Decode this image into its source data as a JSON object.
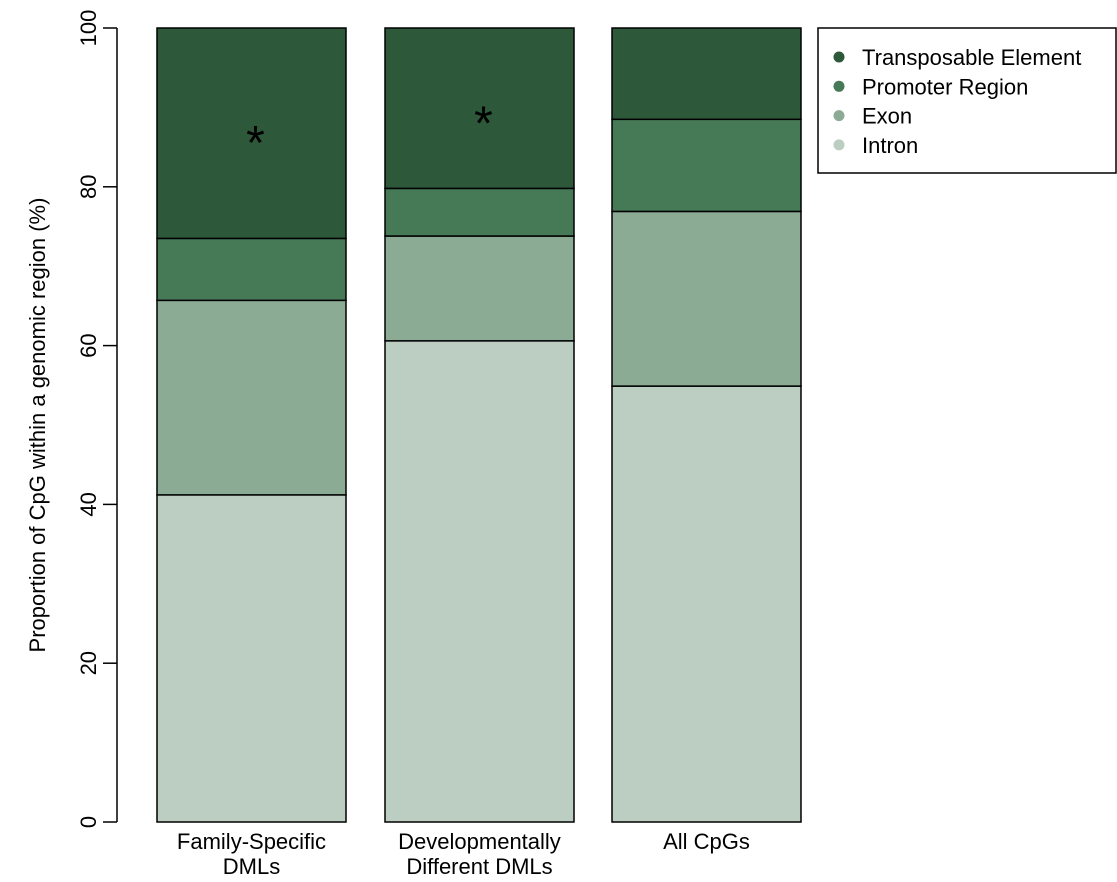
{
  "chart_data": {
    "type": "bar",
    "stacked": true,
    "categories": [
      "Family-Specific DMLs",
      "Developmentally Different DMLs",
      "All CpGs"
    ],
    "category_lines": [
      [
        "Family-Specific",
        "DMLs"
      ],
      [
        "Developmentally",
        "Different DMLs"
      ],
      [
        "All CpGs"
      ]
    ],
    "series": [
      {
        "name": "Intron",
        "color": "#bccdc2",
        "values": [
          41.2,
          60.6,
          54.9
        ]
      },
      {
        "name": "Exon",
        "color": "#8cab95",
        "values": [
          24.5,
          13.2,
          22.0
        ]
      },
      {
        "name": "Promoter Region",
        "color": "#467a57",
        "values": [
          7.8,
          6.0,
          11.6
        ]
      },
      {
        "name": "Transposable Element",
        "color": "#2d583a",
        "values": [
          26.5,
          20.2,
          11.5
        ]
      }
    ],
    "legend_order": [
      "Transposable Element",
      "Promoter Region",
      "Exon",
      "Intron"
    ],
    "legend_position": "top-right",
    "ylabel": "Proportion of CpG within a genomic region (%)",
    "xlabel": "",
    "ylim": [
      0,
      100
    ],
    "yticks": [
      0,
      20,
      40,
      60,
      80,
      100
    ],
    "grid": false,
    "annotations": [
      {
        "text": "*",
        "category": "Family-Specific DMLs",
        "y": 86
      },
      {
        "text": "*",
        "category": "Developmentally Different DMLs",
        "y": 88.5
      }
    ]
  }
}
